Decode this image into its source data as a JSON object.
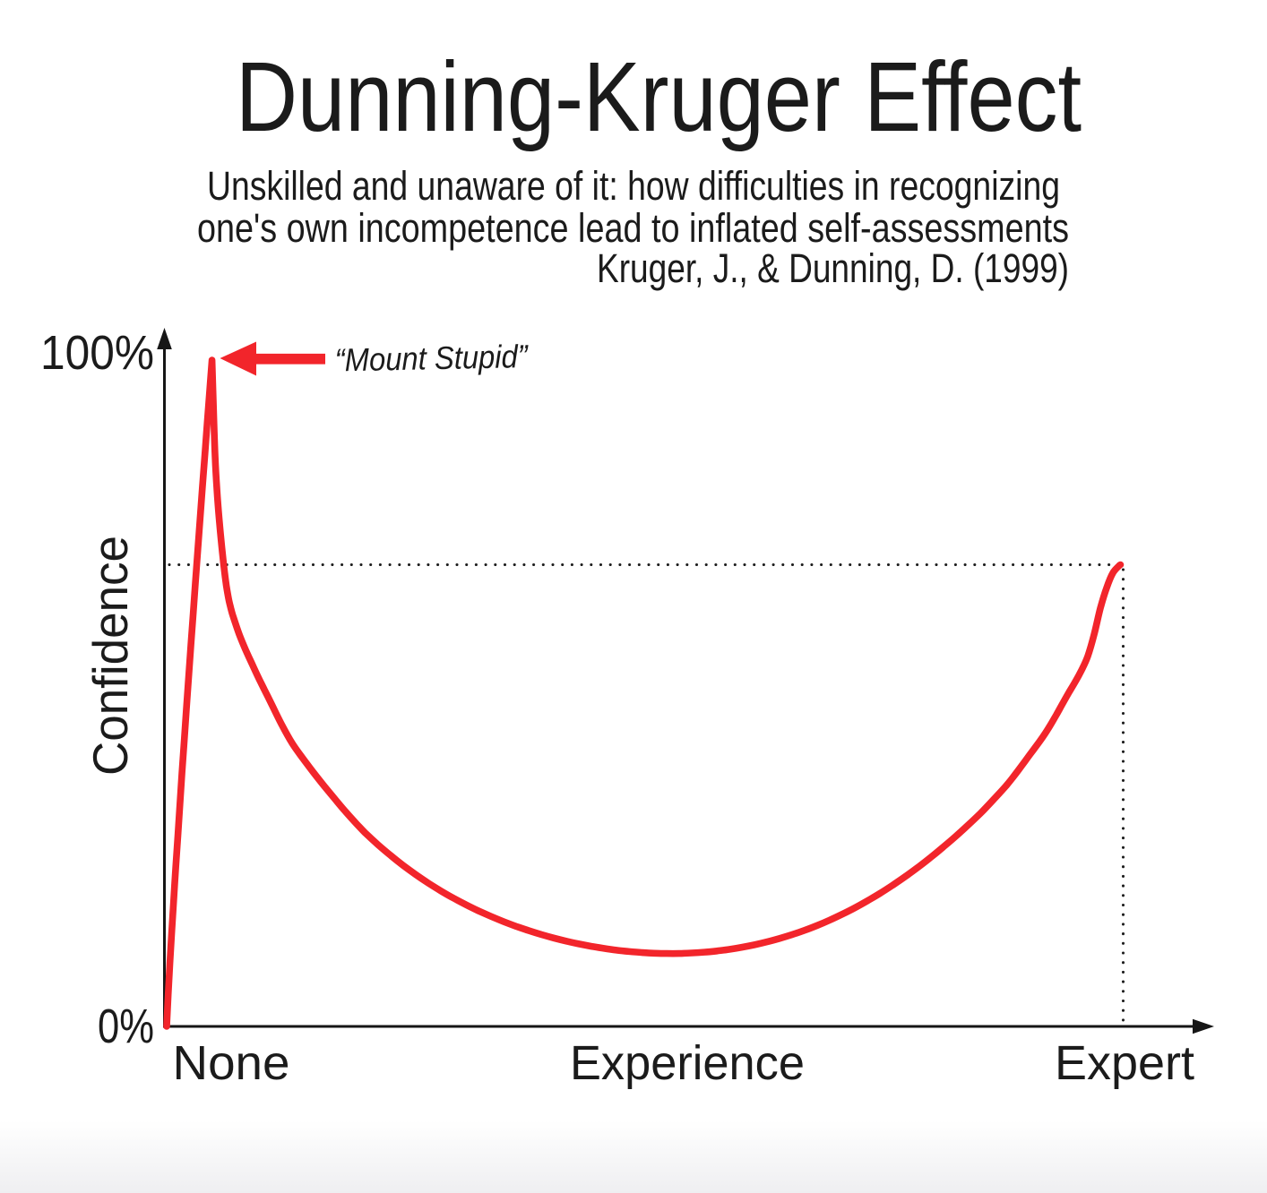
{
  "title": "Dunning-Kruger Effect",
  "subtitle": {
    "line1": "Unskilled and unaware of it: how difficulties in recognizing",
    "line2": "one's own incompetence lead to inflated self-assessments",
    "citation": "Kruger, J., & Dunning, D. (1999)"
  },
  "chart_data": {
    "type": "line",
    "title": "Dunning-Kruger Effect",
    "xlabel": "Experience",
    "ylabel": "Confidence",
    "xticks": [
      "None",
      "Experience",
      "Expert"
    ],
    "yticks": [
      "100%",
      "0%"
    ],
    "ylim": [
      0,
      100
    ],
    "grid": false,
    "legend": false,
    "annotation": {
      "label": "“Mount Stupid”",
      "x": 4.74,
      "y": 98.8
    },
    "expert_point": {
      "x": 100,
      "y": 68.55
    },
    "line_color": "#f2252b",
    "axis_color": "#161616",
    "series": [
      {
        "name": "Confidence",
        "color": "#f2252b",
        "points": [
          [
            0.0,
            0.0
          ],
          [
            0.16,
            4.71
          ],
          [
            0.34,
            9.42
          ],
          [
            0.54,
            14.13
          ],
          [
            0.74,
            18.84
          ],
          [
            0.95,
            23.56
          ],
          [
            1.17,
            28.27
          ],
          [
            1.39,
            32.98
          ],
          [
            1.61,
            37.69
          ],
          [
            1.84,
            42.4
          ],
          [
            2.07,
            47.11
          ],
          [
            2.3,
            51.82
          ],
          [
            2.54,
            56.53
          ],
          [
            2.78,
            61.25
          ],
          [
            3.02,
            65.96
          ],
          [
            3.26,
            70.67
          ],
          [
            3.5,
            75.38
          ],
          [
            3.75,
            80.09
          ],
          [
            4.0,
            84.8
          ],
          [
            4.25,
            89.51
          ],
          [
            4.5,
            94.22
          ],
          [
            4.75,
            98.94
          ],
          [
            4.85,
            94.55
          ],
          [
            5.08,
            84.51
          ],
          [
            5.32,
            78.7
          ],
          [
            5.55,
            74.59
          ],
          [
            5.79,
            71.08
          ],
          [
            6.02,
            68.04
          ],
          [
            6.26,
            65.43
          ],
          [
            6.49,
            63.51
          ],
          [
            6.73,
            62.08
          ],
          [
            6.96,
            60.9
          ],
          [
            7.62,
            58.16
          ],
          [
            8.28,
            55.9
          ],
          [
            8.93,
            53.88
          ],
          [
            9.59,
            51.88
          ],
          [
            10.25,
            49.98
          ],
          [
            10.91,
            48.11
          ],
          [
            12.03,
            44.88
          ],
          [
            13.16,
            42.04
          ],
          [
            14.29,
            39.77
          ],
          [
            15.42,
            37.66
          ],
          [
            16.54,
            35.64
          ],
          [
            17.67,
            33.71
          ],
          [
            18.8,
            31.82
          ],
          [
            19.92,
            30.07
          ],
          [
            20.85,
            28.69
          ],
          [
            22.17,
            26.96
          ],
          [
            23.49,
            25.37
          ],
          [
            24.8,
            23.9
          ],
          [
            26.12,
            22.54
          ],
          [
            27.43,
            21.28
          ],
          [
            28.75,
            20.12
          ],
          [
            30.06,
            19.05
          ],
          [
            31.38,
            18.07
          ],
          [
            32.69,
            17.16
          ],
          [
            34.01,
            16.33
          ],
          [
            35.32,
            15.56
          ],
          [
            36.64,
            14.86
          ],
          [
            37.95,
            14.23
          ],
          [
            39.27,
            13.65
          ],
          [
            40.58,
            13.13
          ],
          [
            41.9,
            12.66
          ],
          [
            43.21,
            12.25
          ],
          [
            44.53,
            11.89
          ],
          [
            45.84,
            11.58
          ],
          [
            47.16,
            11.32
          ],
          [
            48.47,
            11.12
          ],
          [
            49.79,
            10.97
          ],
          [
            51.1,
            10.87
          ],
          [
            52.42,
            10.82
          ],
          [
            53.73,
            10.83
          ],
          [
            55.05,
            10.9
          ],
          [
            56.36,
            11.02
          ],
          [
            57.68,
            11.2
          ],
          [
            58.99,
            11.44
          ],
          [
            60.31,
            11.75
          ],
          [
            61.63,
            12.12
          ],
          [
            62.94,
            12.55
          ],
          [
            64.26,
            13.06
          ],
          [
            65.57,
            13.63
          ],
          [
            66.89,
            14.27
          ],
          [
            68.2,
            14.99
          ],
          [
            69.52,
            15.79
          ],
          [
            70.83,
            16.66
          ],
          [
            72.15,
            17.61
          ],
          [
            73.46,
            18.64
          ],
          [
            74.78,
            19.75
          ],
          [
            76.09,
            20.95
          ],
          [
            77.41,
            22.22
          ],
          [
            78.72,
            23.58
          ],
          [
            80.04,
            25.02
          ],
          [
            81.35,
            26.55
          ],
          [
            82.67,
            28.15
          ],
          [
            83.98,
            29.84
          ],
          [
            85.3,
            31.61
          ],
          [
            86.05,
            32.71
          ],
          [
            86.71,
            33.71
          ],
          [
            87.36,
            34.7
          ],
          [
            88.02,
            35.75
          ],
          [
            88.68,
            36.9
          ],
          [
            89.34,
            38.13
          ],
          [
            90.0,
            39.4
          ],
          [
            90.65,
            40.65
          ],
          [
            91.31,
            41.9
          ],
          [
            91.97,
            43.22
          ],
          [
            92.63,
            44.68
          ],
          [
            93.28,
            46.27
          ],
          [
            93.94,
            47.95
          ],
          [
            94.6,
            49.6
          ],
          [
            95.26,
            51.17
          ],
          [
            95.91,
            52.88
          ],
          [
            96.57,
            54.97
          ],
          [
            97.23,
            58.17
          ],
          [
            97.89,
            62.09
          ],
          [
            98.54,
            65.11
          ],
          [
            99.2,
            67.33
          ],
          [
            99.86,
            68.4
          ],
          [
            100.0,
            68.55
          ]
        ]
      }
    ]
  }
}
